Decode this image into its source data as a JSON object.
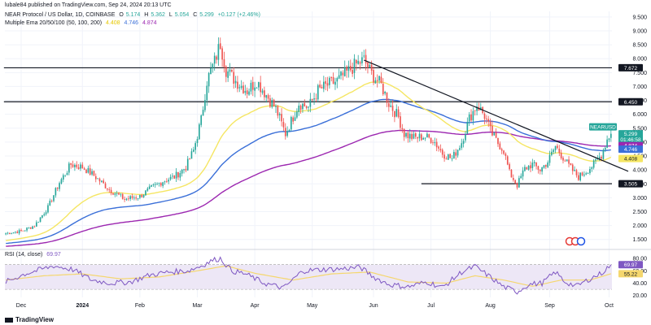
{
  "header": {
    "published_by": "lubale84 published on TradingView.com, Sep 24, 2024 20:13 UTC",
    "symbol_line": "NEAR Protocol / US Dollar, 1D, COINBASE",
    "ohlc": {
      "o_label": "O",
      "o": "5.174",
      "h_label": "H",
      "h": "5.362",
      "l_label": "L",
      "l": "5.054",
      "c_label": "C",
      "c": "5.299",
      "change": "+0.127 (+2.46%)"
    },
    "ema_title": "Multiple Ema 20/50/100 (50, 100, 200)",
    "ema_values": [
      "4.408",
      "4.746",
      "4.874"
    ]
  },
  "footer": {
    "brand": "TradingView"
  },
  "colors": {
    "up": "#26a69a",
    "down": "#ef5350",
    "ema50": "#f5e663",
    "ema100": "#3a6fd8",
    "ema200": "#9c27b0",
    "rsi": "#7e57c2",
    "rsi_ma": "#f5d76e",
    "rsi_band": "#ede7f6"
  },
  "chart_data": [
    {
      "type": "candlestick",
      "symbol": "NEARUSD",
      "y_axis_ticks": [
        "9.500",
        "9.000",
        "8.500",
        "8.000",
        "7.500",
        "7.000",
        "6.500",
        "6.000",
        "5.500",
        "5.000",
        "4.500",
        "4.000",
        "3.500",
        "3.000",
        "2.500",
        "2.000",
        "1.500"
      ],
      "ylim": [
        1.2,
        9.7
      ],
      "x_axis_labels": [
        "Dec",
        "2024",
        "Feb",
        "Mar",
        "Apr",
        "May",
        "Jun",
        "Jul",
        "Aug",
        "Sep",
        "Oct"
      ],
      "x_axis_index": [
        8,
        40,
        70,
        100,
        130,
        160,
        192,
        222,
        253,
        284,
        315
      ],
      "price_labels": [
        {
          "text": "7.672",
          "value": 7.672
        },
        {
          "text": "6.450",
          "value": 6.45
        },
        {
          "text": "3.505",
          "value": 3.505
        },
        {
          "text": "NEARUSD",
          "value": 5.55
        },
        {
          "text": "5.299",
          "value": 5.299
        },
        {
          "text": "01:46:58",
          "value": 5.1
        },
        {
          "text": "4.874",
          "value": 4.874
        },
        {
          "text": "4.746",
          "value": 4.746
        },
        {
          "text": "4.408",
          "value": 4.408
        }
      ],
      "horizontal_lines": [
        {
          "value": 7.672,
          "from_index": 0
        },
        {
          "value": 6.45,
          "from_index": 0
        },
        {
          "value": 3.505,
          "from_index": 218
        }
      ],
      "trendline": {
        "from": [
          187,
          7.95
        ],
        "to": [
          325,
          3.95
        ]
      },
      "keypoints": [
        [
          0,
          1.72
        ],
        [
          8,
          1.8
        ],
        [
          15,
          2.0
        ],
        [
          22,
          2.65
        ],
        [
          28,
          3.55
        ],
        [
          34,
          4.2
        ],
        [
          40,
          4.1
        ],
        [
          46,
          3.8
        ],
        [
          54,
          3.3
        ],
        [
          62,
          2.95
        ],
        [
          70,
          3.05
        ],
        [
          76,
          3.35
        ],
        [
          82,
          3.6
        ],
        [
          88,
          3.75
        ],
        [
          94,
          4.1
        ],
        [
          98,
          4.7
        ],
        [
          102,
          5.8
        ],
        [
          105,
          7.2
        ],
        [
          109,
          7.9
        ],
        [
          112,
          8.55
        ],
        [
          115,
          7.6
        ],
        [
          120,
          7.2
        ],
        [
          126,
          6.85
        ],
        [
          131,
          7.2
        ],
        [
          136,
          6.7
        ],
        [
          141,
          6.2
        ],
        [
          146,
          5.3
        ],
        [
          149,
          5.75
        ],
        [
          153,
          6.4
        ],
        [
          158,
          6.25
        ],
        [
          163,
          6.85
        ],
        [
          168,
          7.05
        ],
        [
          173,
          7.2
        ],
        [
          178,
          7.5
        ],
        [
          183,
          7.8
        ],
        [
          187,
          7.95
        ],
        [
          191,
          7.45
        ],
        [
          196,
          7.05
        ],
        [
          200,
          6.4
        ],
        [
          205,
          5.9
        ],
        [
          208,
          5.3
        ],
        [
          213,
          5.15
        ],
        [
          218,
          5.2
        ],
        [
          223,
          5.1
        ],
        [
          228,
          4.6
        ],
        [
          233,
          4.4
        ],
        [
          238,
          5.0
        ],
        [
          242,
          5.85
        ],
        [
          246,
          6.35
        ],
        [
          250,
          5.95
        ],
        [
          253,
          5.4
        ],
        [
          256,
          5.05
        ],
        [
          260,
          4.7
        ],
        [
          263,
          3.9
        ],
        [
          267,
          3.45
        ],
        [
          271,
          4.05
        ],
        [
          275,
          4.2
        ],
        [
          279,
          4.0
        ],
        [
          283,
          4.3
        ],
        [
          287,
          4.85
        ],
        [
          291,
          4.45
        ],
        [
          295,
          4.05
        ],
        [
          299,
          3.75
        ],
        [
          303,
          3.95
        ],
        [
          307,
          4.2
        ],
        [
          311,
          4.55
        ],
        [
          314,
          5.1
        ],
        [
          316,
          5.299
        ]
      ],
      "bars": 317
    },
    {
      "type": "line",
      "title": "RSI (14, close)",
      "value_label": "69.97",
      "ma_label": "55.22",
      "y_axis_ticks": [
        "80.00",
        "60.00",
        "40.00",
        "20.00"
      ],
      "ylim": [
        17,
        88
      ],
      "band": [
        30,
        70
      ],
      "series": [
        {
          "name": "RSI",
          "keypoints": [
            [
              0,
              42
            ],
            [
              10,
              55
            ],
            [
              25,
              68
            ],
            [
              35,
              62
            ],
            [
              45,
              45
            ],
            [
              55,
              40
            ],
            [
              65,
              42
            ],
            [
              75,
              53
            ],
            [
              85,
              58
            ],
            [
              95,
              60
            ],
            [
              102,
              68
            ],
            [
              108,
              77
            ],
            [
              112,
              80
            ],
            [
              118,
              60
            ],
            [
              125,
              55
            ],
            [
              135,
              40
            ],
            [
              145,
              32
            ],
            [
              155,
              60
            ],
            [
              165,
              62
            ],
            [
              175,
              63
            ],
            [
              185,
              66
            ],
            [
              192,
              50
            ],
            [
              200,
              38
            ],
            [
              210,
              34
            ],
            [
              220,
              42
            ],
            [
              228,
              33
            ],
            [
              238,
              58
            ],
            [
              245,
              67
            ],
            [
              252,
              52
            ],
            [
              260,
              34
            ],
            [
              267,
              26
            ],
            [
              273,
              38
            ],
            [
              280,
              40
            ],
            [
              287,
              58
            ],
            [
              292,
              42
            ],
            [
              298,
              35
            ],
            [
              305,
              47
            ],
            [
              311,
              56
            ],
            [
              316,
              69.97
            ]
          ]
        },
        {
          "name": "RSI MA",
          "keypoints": [
            [
              0,
              45
            ],
            [
              20,
              52
            ],
            [
              40,
              55
            ],
            [
              60,
              47
            ],
            [
              80,
              50
            ],
            [
              100,
              60
            ],
            [
              115,
              68
            ],
            [
              130,
              56
            ],
            [
              150,
              45
            ],
            [
              170,
              55
            ],
            [
              190,
              58
            ],
            [
              210,
              42
            ],
            [
              230,
              40
            ],
            [
              245,
              52
            ],
            [
              260,
              45
            ],
            [
              275,
              35
            ],
            [
              290,
              45
            ],
            [
              305,
              45
            ],
            [
              316,
              55.22
            ]
          ]
        }
      ]
    }
  ]
}
